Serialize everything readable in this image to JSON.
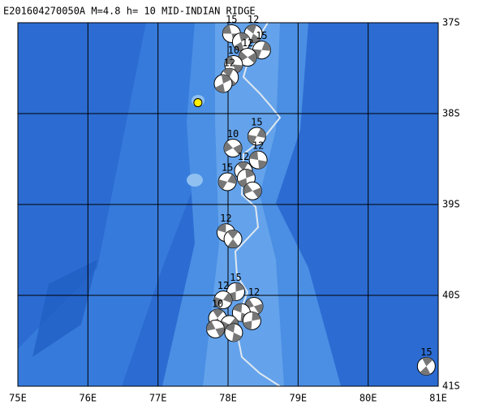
{
  "title": "E201604270050A M=4.8 h= 10 MID-INDIAN RIDGE",
  "map": {
    "lonlim": [
      75,
      81
    ],
    "latlim": [
      37,
      41
    ],
    "lonticks": [
      {
        "value": 75,
        "label": "75E"
      },
      {
        "value": 76,
        "label": "76E"
      },
      {
        "value": 77,
        "label": "77E"
      },
      {
        "value": 78,
        "label": "78E"
      },
      {
        "value": 79,
        "label": "79E"
      },
      {
        "value": 80,
        "label": "80E"
      },
      {
        "value": 81,
        "label": "81E"
      }
    ],
    "latticks": [
      {
        "value": 37,
        "label": "37S"
      },
      {
        "value": 38,
        "label": "38S"
      },
      {
        "value": 39,
        "label": "39S"
      },
      {
        "value": 40,
        "label": "40S"
      },
      {
        "value": 41,
        "label": "41S"
      }
    ],
    "grid": true,
    "events": [
      {
        "lon": 78.05,
        "lat": 37.12,
        "depth": 15
      },
      {
        "lon": 78.36,
        "lat": 37.12,
        "depth": 12
      },
      {
        "lon": 78.19,
        "lat": 37.21
      },
      {
        "lon": 78.48,
        "lat": 37.3,
        "depth": 15
      },
      {
        "lon": 78.28,
        "lat": 37.38,
        "depth": 12
      },
      {
        "lon": 78.08,
        "lat": 37.46,
        "depth": 10
      },
      {
        "lon": 78.02,
        "lat": 37.6,
        "depth": 12
      },
      {
        "lon": 77.93,
        "lat": 37.67
      },
      {
        "lon": 78.41,
        "lat": 38.25,
        "depth": 15
      },
      {
        "lon": 78.07,
        "lat": 38.38,
        "depth": 10
      },
      {
        "lon": 78.43,
        "lat": 38.51,
        "depth": 12
      },
      {
        "lon": 78.22,
        "lat": 38.63,
        "depth": 12
      },
      {
        "lon": 78.26,
        "lat": 38.71
      },
      {
        "lon": 77.99,
        "lat": 38.75,
        "depth": 15
      },
      {
        "lon": 78.35,
        "lat": 38.85
      },
      {
        "lon": 77.97,
        "lat": 39.31,
        "depth": 12
      },
      {
        "lon": 78.07,
        "lat": 39.38
      },
      {
        "lon": 78.11,
        "lat": 39.96,
        "depth": 15
      },
      {
        "lon": 77.93,
        "lat": 40.05,
        "depth": 12
      },
      {
        "lon": 78.37,
        "lat": 40.12,
        "depth": 12
      },
      {
        "lon": 78.19,
        "lat": 40.19
      },
      {
        "lon": 77.85,
        "lat": 40.25,
        "depth": 10
      },
      {
        "lon": 78.34,
        "lat": 40.28
      },
      {
        "lon": 78.02,
        "lat": 40.32
      },
      {
        "lon": 77.82,
        "lat": 40.37
      },
      {
        "lon": 78.08,
        "lat": 40.41
      },
      {
        "lon": 80.83,
        "lat": 40.78,
        "depth": 15
      }
    ],
    "markers": [
      {
        "lon": 77.57,
        "lat": 37.88,
        "color": "#ffee00"
      },
      {
        "lon": 78.0,
        "lat": 38.78,
        "color": "#ffee00"
      }
    ]
  }
}
